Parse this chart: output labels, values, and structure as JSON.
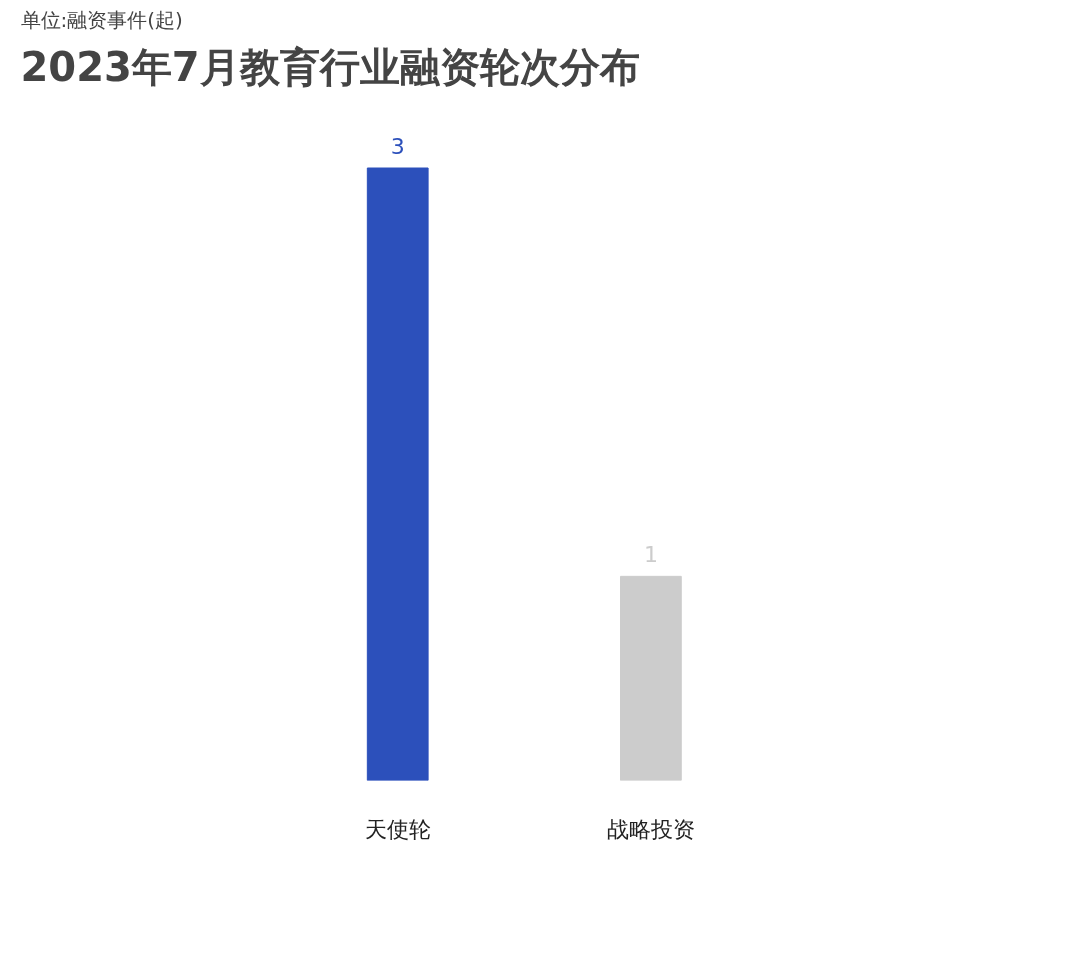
{
  "chart_data": {
    "type": "bar",
    "title": "2023年7月教育行业融资轮次分布",
    "subtitle": "单位:融资事件(起)",
    "categories": [
      "天使轮",
      "战略投资"
    ],
    "values": [
      3,
      1
    ],
    "colors": [
      "#2c50bb",
      "#cccccc"
    ],
    "data_labels": true
  }
}
